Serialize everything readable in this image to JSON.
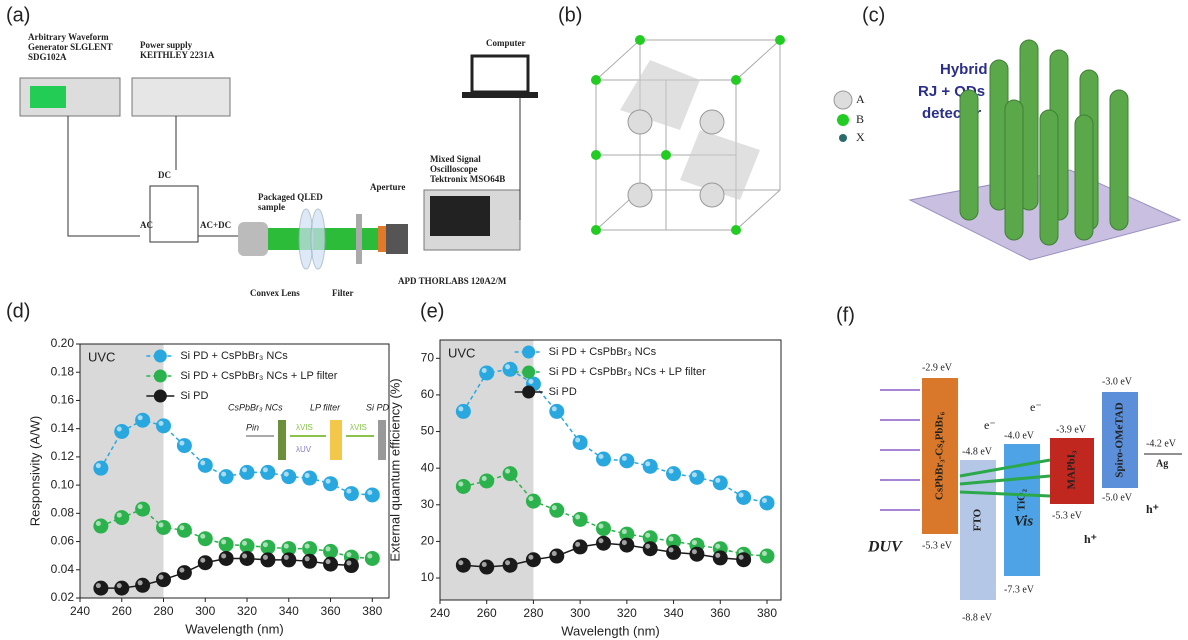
{
  "panels": {
    "a": "(a)",
    "b": "(b)",
    "c": "(c)",
    "d": "(d)",
    "e": "(e)",
    "f": "(f)"
  },
  "setup": {
    "generator": [
      "Arbitrary Waveform",
      "Generator SLGLENT",
      "SDG102A"
    ],
    "power": [
      "Power supply",
      "KEITHLEY 2231A"
    ],
    "computer": "Computer",
    "dc": "DC",
    "ac": "AC",
    "acdc": "AC+DC",
    "qled": [
      "Packaged QLED",
      "sample"
    ],
    "aperture": "Aperture",
    "scope": [
      "Mixed Signal",
      "Oscilloscope",
      "Tektronix MSO64B"
    ],
    "lens": "Convex Lens",
    "filter": "Filter",
    "apd": "APD THORLABS 120A2/M"
  },
  "lattice": {
    "legend": [
      "A",
      "B",
      "X"
    ]
  },
  "detector": {
    "title": [
      "Hybrid",
      "RJ + QDs",
      "detector"
    ]
  },
  "bands": {
    "layers": [
      {
        "name": "CsPbBr₃-Cs₄PbBr₆",
        "top": "-2.9 eV",
        "bottom": "-5.3 eV"
      },
      {
        "name": "FTO",
        "top": "-4.8 eV",
        "bottom": "-8.8 eV"
      },
      {
        "name": "TiO₂",
        "top": "-4.0 eV",
        "bottom": "-7.3 eV"
      },
      {
        "name": "MAPbI₃",
        "top": "-3.9 eV",
        "bottom": "-5.3 eV"
      },
      {
        "name": "Spiro-OMeTAD",
        "top": "-3.0 eV",
        "bottom": "-5.0 eV"
      },
      {
        "name": "Ag",
        "top": "-4.2 eV"
      }
    ],
    "duv": "DUV",
    "vis": "Vis",
    "electron": "e⁻",
    "hole": "h⁺"
  },
  "chart_data": [
    {
      "type": "line",
      "xlabel": "Wavelength (nm)",
      "ylabel": "Responsivity (A/W)",
      "x": [
        250,
        260,
        270,
        280,
        290,
        300,
        310,
        320,
        330,
        340,
        350,
        360,
        370,
        380
      ],
      "xlim": [
        240,
        388
      ],
      "xticks": [
        240,
        260,
        280,
        300,
        320,
        340,
        360,
        380
      ],
      "ylim": [
        0.02,
        0.2
      ],
      "yticks": [
        0.02,
        0.04,
        0.06,
        0.08,
        {
          "value": 0.1,
          "label": "0.10"
        },
        0.12,
        0.14,
        0.16,
        0.18,
        {
          "value": 0.2,
          "label": "0.20"
        }
      ],
      "shaded_region": {
        "x": [
          240,
          280
        ],
        "label": "UVC"
      },
      "series": [
        {
          "name": "Si PD + CsPbBr₃ NCs",
          "color": "#29a8e0",
          "values": [
            0.112,
            0.138,
            0.146,
            0.142,
            0.128,
            0.114,
            0.106,
            0.109,
            0.109,
            0.106,
            0.105,
            0.101,
            0.094,
            0.093
          ]
        },
        {
          "name": "Si PD + CsPbBr₃ NCs + LP filter",
          "color": "#2bb24c",
          "values": [
            0.071,
            0.077,
            0.083,
            0.07,
            0.068,
            0.062,
            0.058,
            0.057,
            0.056,
            0.055,
            0.055,
            0.053,
            0.049,
            0.048
          ]
        },
        {
          "name": "Si PD",
          "color": "#1a1a1a",
          "values": [
            0.027,
            0.027,
            0.029,
            0.033,
            0.038,
            0.045,
            0.048,
            0.048,
            0.047,
            0.047,
            0.046,
            0.044,
            0.043,
            null
          ]
        }
      ],
      "inset": {
        "labels": [
          "CsPbBr₃ NCs",
          "LP filter",
          "Si PD",
          "Pin",
          "λVIS",
          "λVIS",
          "λUV"
        ]
      }
    },
    {
      "type": "line",
      "xlabel": "Wavelength (nm)",
      "ylabel": "External quantum efficiency (%)",
      "x": [
        250,
        260,
        270,
        280,
        290,
        300,
        310,
        320,
        330,
        340,
        350,
        360,
        370,
        380
      ],
      "xlim": [
        240,
        386
      ],
      "xticks": [
        240,
        260,
        280,
        300,
        320,
        340,
        360,
        380
      ],
      "ylim": [
        4,
        75
      ],
      "yticks": [
        10,
        20,
        30,
        40,
        50,
        60,
        70
      ],
      "shaded_region": {
        "x": [
          240,
          280
        ],
        "label": "UVC"
      },
      "series": [
        {
          "name": "Si PD + CsPbBr₃ NCs",
          "color": "#29a8e0",
          "values": [
            55.5,
            66,
            67,
            63,
            55.5,
            47,
            42.5,
            42,
            40.5,
            38.5,
            37.5,
            36,
            32,
            30.5
          ]
        },
        {
          "name": "Si PD + CsPbBr₃ NCs + LP filter",
          "color": "#2bb24c",
          "values": [
            35,
            36.5,
            38.5,
            31,
            28.5,
            26,
            23.5,
            22,
            21,
            20,
            19,
            18,
            16.5,
            16
          ]
        },
        {
          "name": "Si PD",
          "color": "#1a1a1a",
          "values": [
            13.5,
            13,
            13.5,
            15,
            16,
            18.5,
            19.5,
            19,
            18,
            17,
            16.5,
            15.5,
            15,
            null
          ]
        }
      ]
    }
  ]
}
